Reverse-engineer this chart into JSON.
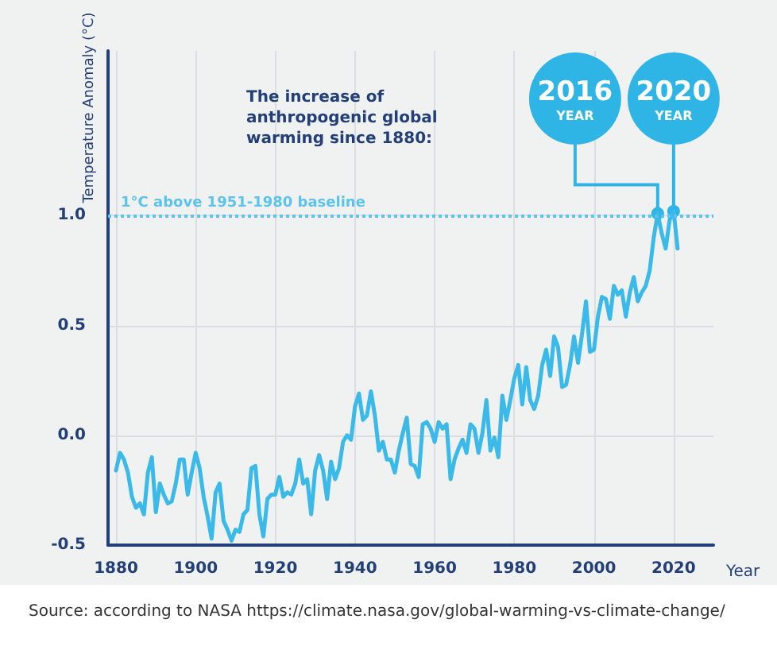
{
  "chart_data": {
    "type": "line",
    "title": "The increase of anthropogenic global warming since 1880:",
    "xlabel": "Year",
    "ylabel": "Temperature Anomaly (°C)",
    "x": [
      1880,
      1881,
      1882,
      1883,
      1884,
      1885,
      1886,
      1887,
      1888,
      1889,
      1890,
      1891,
      1892,
      1893,
      1894,
      1895,
      1896,
      1897,
      1898,
      1899,
      1900,
      1901,
      1902,
      1903,
      1904,
      1905,
      1906,
      1907,
      1908,
      1909,
      1910,
      1911,
      1912,
      1913,
      1914,
      1915,
      1916,
      1917,
      1918,
      1919,
      1920,
      1921,
      1922,
      1923,
      1924,
      1925,
      1926,
      1927,
      1928,
      1929,
      1930,
      1931,
      1932,
      1933,
      1934,
      1935,
      1936,
      1937,
      1938,
      1939,
      1940,
      1941,
      1942,
      1943,
      1944,
      1945,
      1946,
      1947,
      1948,
      1949,
      1950,
      1951,
      1952,
      1953,
      1954,
      1955,
      1956,
      1957,
      1958,
      1959,
      1960,
      1961,
      1962,
      1963,
      1964,
      1965,
      1966,
      1967,
      1968,
      1969,
      1970,
      1971,
      1972,
      1973,
      1974,
      1975,
      1976,
      1977,
      1978,
      1979,
      1980,
      1981,
      1982,
      1983,
      1984,
      1985,
      1986,
      1987,
      1988,
      1989,
      1990,
      1991,
      1992,
      1993,
      1994,
      1995,
      1996,
      1997,
      1998,
      1999,
      2000,
      2001,
      2002,
      2003,
      2004,
      2005,
      2006,
      2007,
      2008,
      2009,
      2010,
      2011,
      2012,
      2013,
      2014,
      2015,
      2016,
      2017,
      2018,
      2019,
      2020,
      2021
    ],
    "series": [
      {
        "color": "#3bb9e8",
        "values": [
          -0.16,
          -0.08,
          -0.11,
          -0.17,
          -0.28,
          -0.33,
          -0.31,
          -0.36,
          -0.17,
          -0.1,
          -0.35,
          -0.22,
          -0.27,
          -0.31,
          -0.3,
          -0.22,
          -0.11,
          -0.11,
          -0.27,
          -0.17,
          -0.08,
          -0.15,
          -0.28,
          -0.37,
          -0.47,
          -0.26,
          -0.22,
          -0.39,
          -0.43,
          -0.48,
          -0.43,
          -0.44,
          -0.36,
          -0.34,
          -0.15,
          -0.14,
          -0.36,
          -0.46,
          -0.29,
          -0.27,
          -0.27,
          -0.19,
          -0.28,
          -0.26,
          -0.27,
          -0.22,
          -0.11,
          -0.22,
          -0.2,
          -0.36,
          -0.16,
          -0.09,
          -0.16,
          -0.29,
          -0.12,
          -0.2,
          -0.15,
          -0.03,
          0,
          -0.02,
          0.13,
          0.19,
          0.07,
          0.09,
          0.2,
          0.09,
          -0.07,
          -0.03,
          -0.11,
          -0.11,
          -0.17,
          -0.07,
          0.01,
          0.08,
          -0.13,
          -0.14,
          -0.19,
          0.05,
          0.06,
          0.03,
          -0.03,
          0.06,
          0.03,
          0.05,
          -0.2,
          -0.11,
          -0.06,
          -0.02,
          -0.08,
          0.05,
          0.03,
          -0.08,
          0.01,
          0.16,
          -0.07,
          -0.01,
          -0.1,
          0.18,
          0.07,
          0.16,
          0.26,
          0.32,
          0.14,
          0.31,
          0.16,
          0.12,
          0.18,
          0.32,
          0.39,
          0.27,
          0.45,
          0.4,
          0.22,
          0.23,
          0.32,
          0.45,
          0.33,
          0.46,
          0.61,
          0.38,
          0.39,
          0.54,
          0.63,
          0.62,
          0.53,
          0.68,
          0.64,
          0.66,
          0.54,
          0.65,
          0.72,
          0.61,
          0.65,
          0.68,
          0.75,
          0.9,
          1.01,
          0.92,
          0.85,
          0.98,
          1.02,
          0.85
        ]
      }
    ],
    "xlim": [
      1878,
      2030
    ],
    "xticks": [
      1880,
      1900,
      1920,
      1940,
      1960,
      1980,
      2000,
      2020
    ],
    "ylim": [
      -0.5,
      1.75
    ],
    "yticks": [
      {
        "value": -0.5,
        "label": "-0.5"
      },
      {
        "value": 0,
        "label": "0.0"
      },
      {
        "value": 0.5,
        "label": "0.5"
      },
      {
        "value": 1,
        "label": "1.0"
      }
    ],
    "ref_lines": [
      {
        "axis": "y",
        "value": 1,
        "label": "1°C above 1951-1980 baseline",
        "color": "#5cc3ec",
        "line_style": "dotted"
      }
    ],
    "annotations": [
      "Source: according to NASA https://climate.nasa.gov/global-warming-vs-climate-change/",
      {
        "text": "2016 YEAR",
        "x": 2016,
        "y": 1.01
      },
      {
        "text": "2020 YEAR",
        "x": 2020,
        "y": 1.02
      }
    ],
    "grid": true,
    "marker": "none",
    "line_style": "solid"
  }
}
